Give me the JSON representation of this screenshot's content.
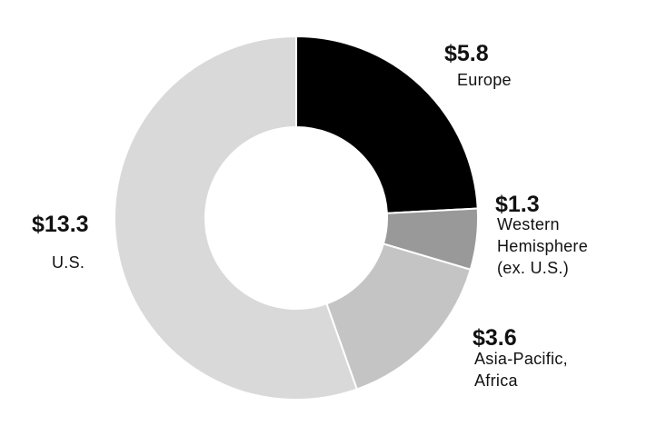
{
  "chart_data": {
    "type": "donut",
    "categories": [
      "Europe",
      "Western Hemisphere (ex. U.S.)",
      "Asia-Pacific, Africa",
      "U.S."
    ],
    "values": [
      5.8,
      1.3,
      3.6,
      13.3
    ],
    "value_labels": [
      "$5.8",
      "$1.3",
      "$3.6",
      "$13.3"
    ],
    "colors": [
      "#000000",
      "#999999",
      "#c4c4c4",
      "#d9d9d9"
    ]
  }
}
